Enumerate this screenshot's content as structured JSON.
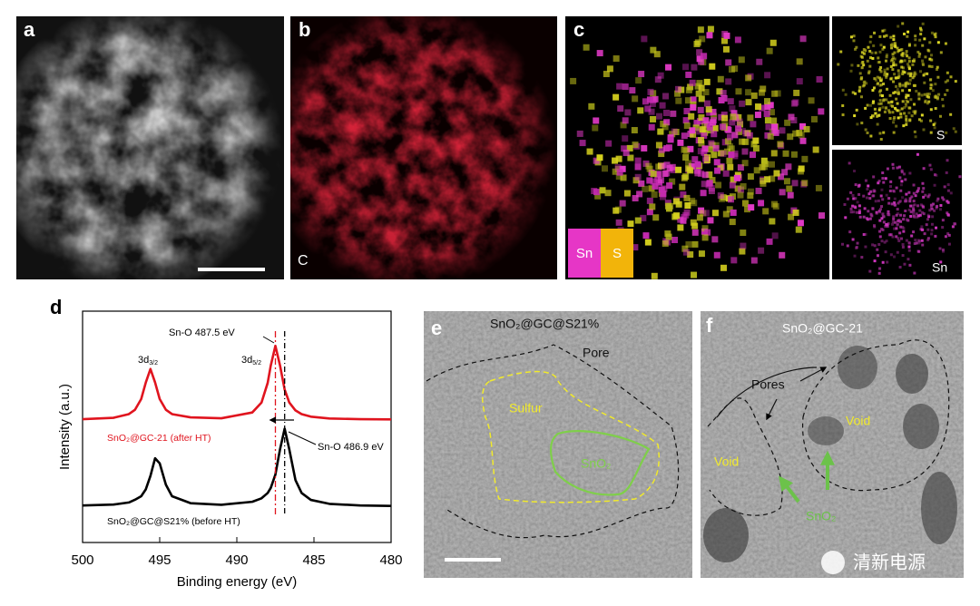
{
  "panels": {
    "a": {
      "label": "a"
    },
    "b": {
      "label": "b",
      "element": "C"
    },
    "c": {
      "label": "c",
      "legend": [
        "Sn",
        "S"
      ],
      "insets": [
        "S",
        "Sn"
      ]
    },
    "e": {
      "label": "e",
      "title": "SnO₂@GC@S21%",
      "annotations": [
        "Pore",
        "Sulfur",
        "SnO₂"
      ]
    },
    "f": {
      "label": "f",
      "title": "SnO₂@GC-21",
      "annotations": [
        "Pores",
        "Void",
        "Void",
        "SnO₂"
      ]
    }
  },
  "chart_data": {
    "type": "line",
    "label": "d",
    "xlabel": "Binding energy (eV)",
    "ylabel": "Intensity (a.u.)",
    "x": [
      500,
      498,
      497,
      496.6,
      496.2,
      495.9,
      495.6,
      495.3,
      495.0,
      494.6,
      494.2,
      493,
      491,
      489,
      488.4,
      488,
      487.8,
      487.5,
      487.2,
      486.9,
      486.6,
      486.2,
      485.8,
      485.2,
      484,
      482,
      480
    ],
    "xlim": [
      500,
      480
    ],
    "xticks": [
      500,
      495,
      490,
      485,
      480
    ],
    "ylim": [
      0,
      10
    ],
    "series": [
      {
        "name": "SnO₂@GC-21 (after HT)",
        "color": "#e0141e",
        "values": [
          5.33,
          5.39,
          5.55,
          5.74,
          6.2,
          6.92,
          7.5,
          6.92,
          6.2,
          5.74,
          5.55,
          5.41,
          5.37,
          5.62,
          6.05,
          6.9,
          7.65,
          8.5,
          7.65,
          6.61,
          6.05,
          5.71,
          5.55,
          5.44,
          5.36,
          5.33,
          5.32
        ]
      },
      {
        "name": "SnO₂@GC@S21% (before HT)",
        "color": "#000000",
        "values": [
          1.6,
          1.64,
          1.73,
          1.85,
          2.0,
          2.3,
          2.88,
          3.64,
          3.42,
          2.5,
          2.0,
          1.7,
          1.63,
          1.76,
          1.91,
          2.14,
          2.36,
          2.94,
          4.03,
          4.92,
          4.03,
          2.7,
          2.14,
          1.84,
          1.67,
          1.6,
          1.58
        ]
      }
    ],
    "annotations": [
      "Sn-O 487.5 eV",
      "Sn-O 486.9 eV"
    ],
    "peak_labels": [
      {
        "main": "3d",
        "sub": "3/2"
      },
      {
        "main": "3d",
        "sub": "5/2"
      }
    ],
    "reference_lines": [
      {
        "value": 487.5,
        "color": "#e0141e"
      },
      {
        "value": 486.9,
        "color": "#000000"
      }
    ]
  },
  "watermark": "清新电源"
}
